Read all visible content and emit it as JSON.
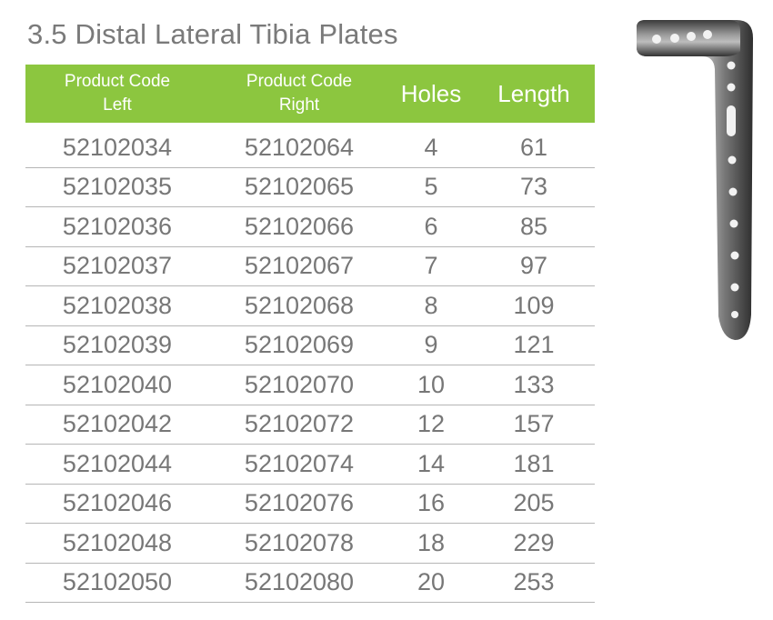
{
  "title": "3.5 Distal Lateral Tibia Plates",
  "table": {
    "headers": {
      "code_left": [
        "Product Code",
        "Left"
      ],
      "code_right": [
        "Product Code",
        "Right"
      ],
      "holes": "Holes",
      "length": "Length"
    },
    "rows": [
      {
        "left": "52102034",
        "right": "52102064",
        "holes": "4",
        "length": "61"
      },
      {
        "left": "52102035",
        "right": "52102065",
        "holes": "5",
        "length": "73"
      },
      {
        "left": "52102036",
        "right": "52102066",
        "holes": "6",
        "length": "85"
      },
      {
        "left": "52102037",
        "right": "52102067",
        "holes": "7",
        "length": "97"
      },
      {
        "left": "52102038",
        "right": "52102068",
        "holes": "8",
        "length": "109"
      },
      {
        "left": "52102039",
        "right": "52102069",
        "holes": "9",
        "length": "121"
      },
      {
        "left": "52102040",
        "right": "52102070",
        "holes": "10",
        "length": "133"
      },
      {
        "left": "52102042",
        "right": "52102072",
        "holes": "12",
        "length": "157"
      },
      {
        "left": "52102044",
        "right": "52102074",
        "holes": "14",
        "length": "181"
      },
      {
        "left": "52102046",
        "right": "52102076",
        "holes": "16",
        "length": "205"
      },
      {
        "left": "52102048",
        "right": "52102078",
        "holes": "18",
        "length": "229"
      },
      {
        "left": "52102050",
        "right": "52102080",
        "holes": "20",
        "length": "253"
      }
    ]
  },
  "colors": {
    "header_bg": "#8cc63f",
    "header_text": "#ffffff",
    "body_text": "#777777",
    "title_text": "#7a7a7a",
    "divider": "#b5b5b5"
  },
  "icons": {
    "product_image": "tibia-plate-image"
  }
}
